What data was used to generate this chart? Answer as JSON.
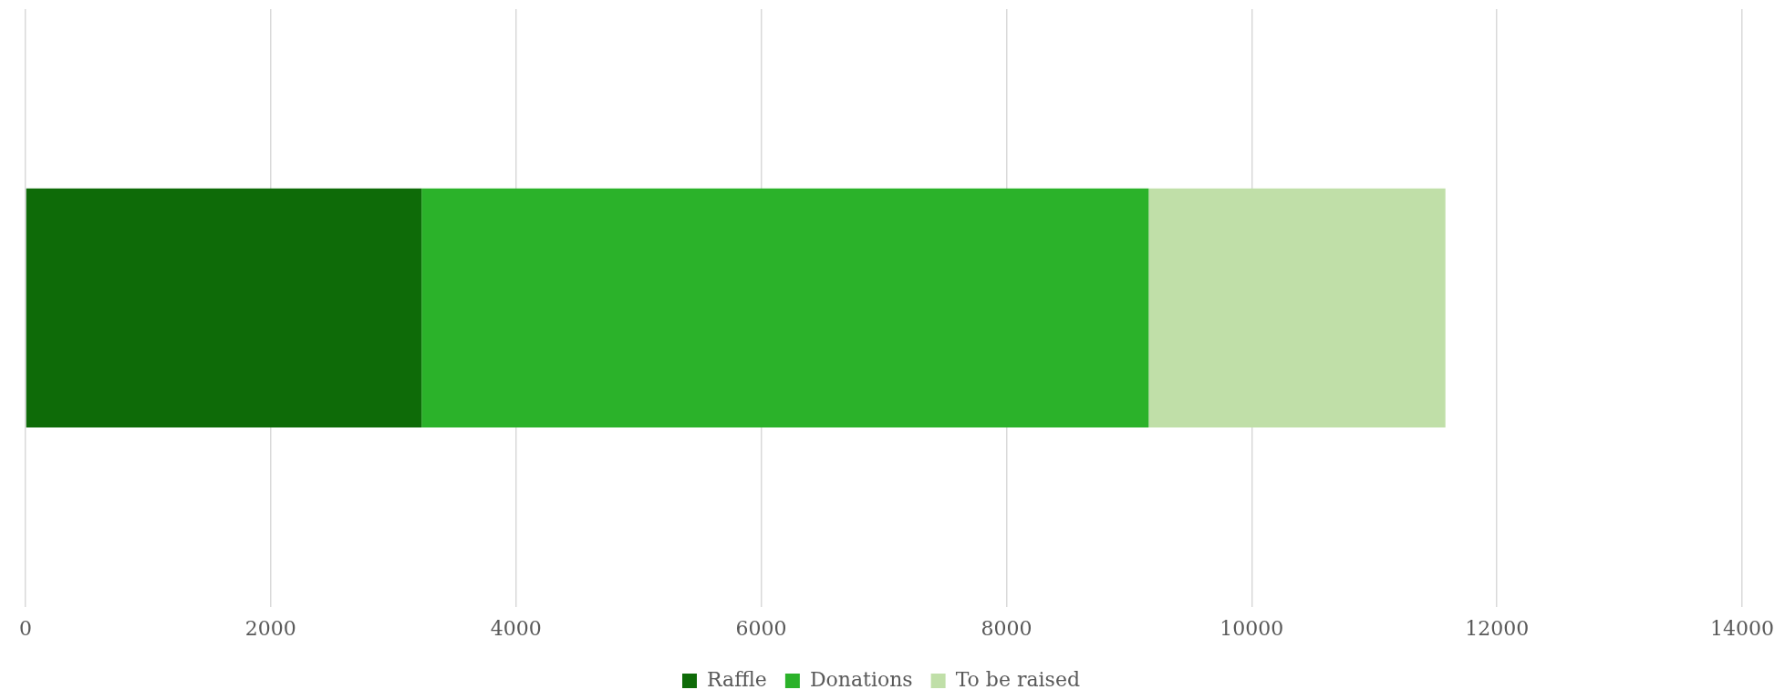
{
  "chart_data": {
    "type": "bar",
    "orientation": "horizontal",
    "stacked": true,
    "categories": [
      null
    ],
    "series": [
      {
        "name": "Raffle",
        "color": "#0e6b08",
        "values": [
          3230
        ]
      },
      {
        "name": "Donations",
        "color": "#2bb22a",
        "values": [
          5930
        ]
      },
      {
        "name": "To be raised",
        "color": "#c0dfa8",
        "values": [
          2420
        ]
      }
    ],
    "xlim": [
      0,
      14000
    ],
    "xticks": [
      0,
      2000,
      4000,
      6000,
      8000,
      10000,
      12000,
      14000
    ],
    "grid": "x",
    "legend": "bottom",
    "tick_labels": "x"
  }
}
